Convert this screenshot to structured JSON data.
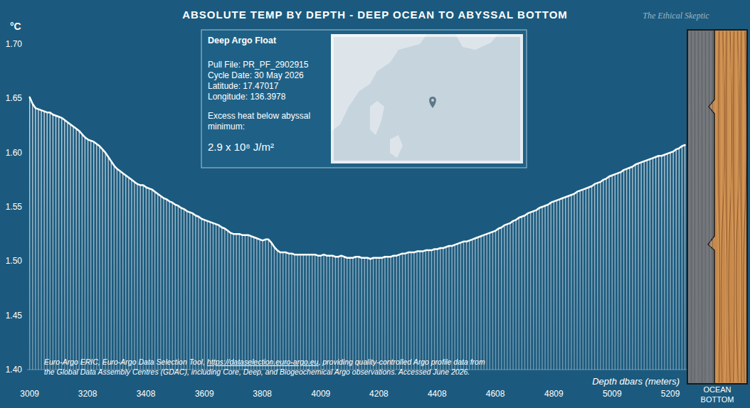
{
  "chart_data": {
    "type": "bar",
    "title": "ABSOLUTE TEMP BY DEPTH - DEEP OCEAN TO ABYSSAL BOTTOM",
    "y_label": "°C",
    "x_label": "Depth dbars (meters)",
    "watermark": "The Ethical Skeptic",
    "color": "#ffffff",
    "grid": false,
    "xlim": [
      3000,
      5265
    ],
    "ylim": [
      1.4,
      1.7
    ],
    "xticks": [
      3009,
      3208,
      3408,
      3609,
      3808,
      4009,
      4208,
      4408,
      4608,
      4809,
      5009,
      5209
    ],
    "yticks": [
      {
        "value": 1.4,
        "label": "1.40"
      },
      1.45,
      {
        "value": 1.5,
        "label": "1.50"
      },
      1.55,
      {
        "value": 1.6,
        "label": "1.60"
      },
      1.65,
      {
        "value": 1.7,
        "label": "1.70"
      }
    ],
    "x": [
      3009,
      3019,
      3029,
      3039,
      3049,
      3059,
      3069,
      3079,
      3089,
      3099,
      3109,
      3119,
      3129,
      3139,
      3149,
      3159,
      3169,
      3179,
      3189,
      3199,
      3209,
      3219,
      3229,
      3239,
      3249,
      3259,
      3269,
      3279,
      3289,
      3299,
      3309,
      3319,
      3329,
      3339,
      3349,
      3359,
      3369,
      3379,
      3389,
      3399,
      3409,
      3419,
      3429,
      3439,
      3449,
      3459,
      3469,
      3479,
      3489,
      3499,
      3509,
      3519,
      3529,
      3539,
      3549,
      3559,
      3569,
      3579,
      3589,
      3599,
      3609,
      3619,
      3629,
      3639,
      3649,
      3659,
      3669,
      3679,
      3689,
      3699,
      3709,
      3719,
      3729,
      3739,
      3749,
      3759,
      3769,
      3779,
      3789,
      3799,
      3809,
      3819,
      3829,
      3839,
      3849,
      3859,
      3869,
      3879,
      3889,
      3899,
      3909,
      3919,
      3929,
      3939,
      3949,
      3959,
      3969,
      3979,
      3989,
      3999,
      4009,
      4019,
      4029,
      4039,
      4049,
      4059,
      4069,
      4079,
      4089,
      4099,
      4109,
      4119,
      4129,
      4139,
      4149,
      4159,
      4169,
      4179,
      4189,
      4199,
      4209,
      4219,
      4229,
      4239,
      4249,
      4259,
      4269,
      4279,
      4289,
      4299,
      4309,
      4319,
      4329,
      4339,
      4349,
      4359,
      4369,
      4379,
      4389,
      4399,
      4409,
      4419,
      4429,
      4439,
      4449,
      4459,
      4469,
      4479,
      4489,
      4499,
      4509,
      4519,
      4529,
      4539,
      4549,
      4559,
      4569,
      4579,
      4589,
      4599,
      4609,
      4619,
      4629,
      4639,
      4649,
      4659,
      4669,
      4679,
      4689,
      4699,
      4709,
      4719,
      4729,
      4739,
      4749,
      4759,
      4769,
      4779,
      4789,
      4799,
      4809,
      4819,
      4829,
      4839,
      4849,
      4859,
      4869,
      4879,
      4889,
      4899,
      4909,
      4919,
      4929,
      4939,
      4949,
      4959,
      4969,
      4979,
      4989,
      4999,
      5009,
      5019,
      5029,
      5039,
      5049,
      5059,
      5069,
      5079,
      5089,
      5099,
      5109,
      5119,
      5129,
      5139,
      5149,
      5159,
      5169,
      5179,
      5189,
      5199,
      5209,
      5219,
      5229,
      5239,
      5249,
      5259
    ],
    "values": [
      1.651,
      1.645,
      1.641,
      1.64,
      1.639,
      1.638,
      1.637,
      1.637,
      1.635,
      1.634,
      1.633,
      1.632,
      1.63,
      1.628,
      1.626,
      1.624,
      1.622,
      1.62,
      1.617,
      1.614,
      1.612,
      1.611,
      1.61,
      1.608,
      1.606,
      1.603,
      1.6,
      1.596,
      1.592,
      1.588,
      1.585,
      1.583,
      1.581,
      1.579,
      1.577,
      1.575,
      1.573,
      1.571,
      1.57,
      1.57,
      1.568,
      1.567,
      1.566,
      1.564,
      1.562,
      1.56,
      1.558,
      1.557,
      1.555,
      1.554,
      1.552,
      1.551,
      1.549,
      1.548,
      1.546,
      1.545,
      1.544,
      1.542,
      1.541,
      1.539,
      1.538,
      1.537,
      1.536,
      1.535,
      1.534,
      1.533,
      1.531,
      1.53,
      1.528,
      1.526,
      1.525,
      1.525,
      1.525,
      1.524,
      1.524,
      1.524,
      1.523,
      1.522,
      1.521,
      1.52,
      1.519,
      1.52,
      1.52,
      1.517,
      1.513,
      1.51,
      1.508,
      1.508,
      1.508,
      1.507,
      1.507,
      1.506,
      1.506,
      1.506,
      1.506,
      1.506,
      1.506,
      1.506,
      1.506,
      1.505,
      1.505,
      1.506,
      1.505,
      1.505,
      1.505,
      1.504,
      1.504,
      1.505,
      1.504,
      1.503,
      1.503,
      1.503,
      1.504,
      1.504,
      1.503,
      1.503,
      1.503,
      1.502,
      1.503,
      1.503,
      1.503,
      1.503,
      1.504,
      1.504,
      1.504,
      1.505,
      1.505,
      1.506,
      1.507,
      1.507,
      1.508,
      1.508,
      1.508,
      1.509,
      1.509,
      1.509,
      1.51,
      1.51,
      1.51,
      1.511,
      1.511,
      1.512,
      1.512,
      1.513,
      1.514,
      1.514,
      1.515,
      1.516,
      1.517,
      1.518,
      1.518,
      1.519,
      1.52,
      1.521,
      1.522,
      1.523,
      1.524,
      1.525,
      1.526,
      1.527,
      1.528,
      1.53,
      1.531,
      1.533,
      1.534,
      1.535,
      1.537,
      1.538,
      1.54,
      1.541,
      1.542,
      1.544,
      1.545,
      1.546,
      1.547,
      1.549,
      1.55,
      1.551,
      1.552,
      1.554,
      1.555,
      1.556,
      1.557,
      1.558,
      1.559,
      1.56,
      1.561,
      1.562,
      1.564,
      1.565,
      1.566,
      1.567,
      1.568,
      1.569,
      1.571,
      1.572,
      1.573,
      1.575,
      1.576,
      1.578,
      1.579,
      1.58,
      1.581,
      1.582,
      1.584,
      1.585,
      1.586,
      1.587,
      1.589,
      1.59,
      1.591,
      1.592,
      1.593,
      1.594,
      1.595,
      1.596,
      1.597,
      1.597,
      1.598,
      1.599,
      1.6,
      1.601,
      1.603,
      1.604,
      1.606,
      1.607
    ],
    "info_box": {
      "heading": "Deep Argo Float",
      "lines": [
        "Pull File: PR_PF_2902915",
        "Cycle Date: 30 May 2026",
        "Latitude: 17.47017",
        "Longitude: 136.3978"
      ],
      "excess_heat_label": "Excess heat below abyssal minimum:",
      "excess_heat_value": "2.9 x 10⁸ J/m²"
    },
    "source": {
      "lines": [
        "Euro-Argo ERIC, Euro-Argo Data Selection Tool, https://dataselection.euro-argo.eu, providing quality-controlled Argo profile data from",
        "the Global Data Assembly Centres (GDAC), including Core, Deep, and Biogeochemical Argo observations. Accessed June 2026."
      ],
      "link": "https://dataselection.euro-argo.eu"
    },
    "bottom_label": "OCEAN BOTTOM"
  }
}
